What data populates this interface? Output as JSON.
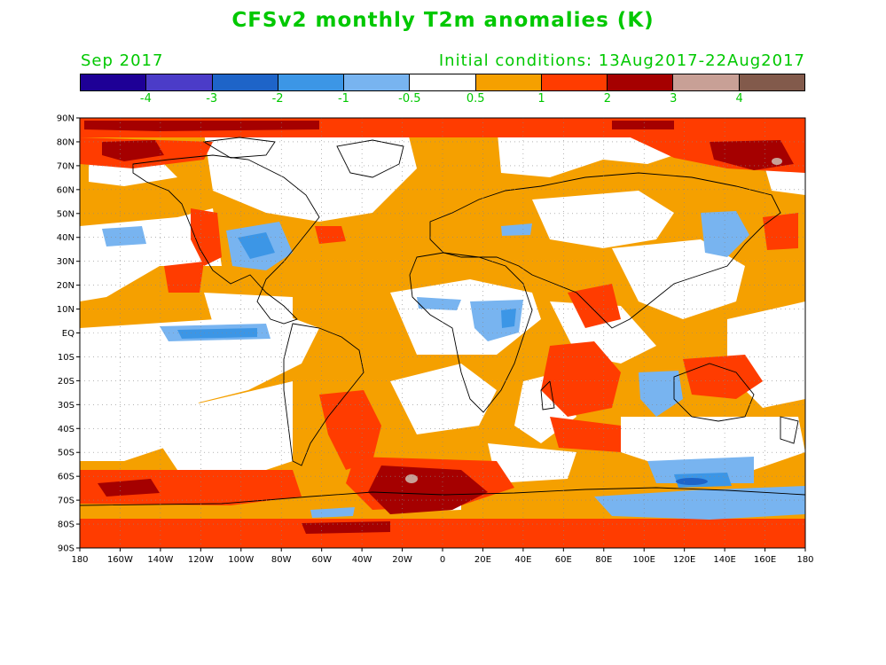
{
  "header": {
    "title": "CFSv2 monthly T2m anomalies (K)",
    "month": "Sep 2017",
    "initial_conditions": "Initial conditions: 13Aug2017-22Aug2017"
  },
  "colorbar": {
    "colors": [
      "#1e0096",
      "#4b3cc8",
      "#1e64c8",
      "#3c96e6",
      "#78b4f0",
      "#ffffff",
      "#f5a000",
      "#ff3c00",
      "#a50000",
      "#c8a096",
      "#825a4b"
    ],
    "labels": [
      "-4",
      "-3",
      "-2",
      "-1",
      "-0.5",
      "0.5",
      "1",
      "2",
      "3",
      "4"
    ]
  },
  "axes": {
    "lat_labels": [
      "90N",
      "80N",
      "70N",
      "60N",
      "50N",
      "40N",
      "30N",
      "20N",
      "10N",
      "EQ",
      "10S",
      "20S",
      "30S",
      "40S",
      "50S",
      "60S",
      "70S",
      "80S",
      "90S"
    ],
    "lon_labels": [
      "180",
      "160W",
      "140W",
      "120W",
      "100W",
      "80W",
      "60W",
      "40W",
      "20W",
      "0",
      "20E",
      "40E",
      "60E",
      "80E",
      "100E",
      "120E",
      "140E",
      "160E",
      "180"
    ]
  },
  "palette": {
    "text": "#00c800",
    "light_orange": "#f5a000",
    "orange_red": "#ff3c00",
    "dark_red": "#a50000",
    "pink": "#c8a096",
    "light_blue": "#78b4f0",
    "mid_blue": "#3c96e6",
    "blue": "#1e64c8"
  }
}
